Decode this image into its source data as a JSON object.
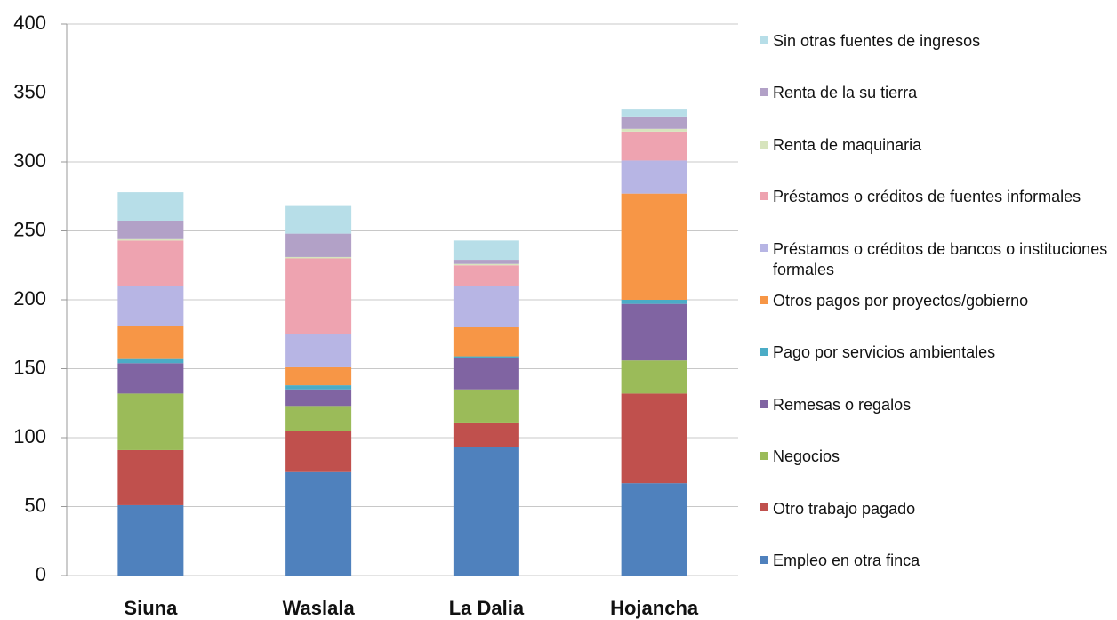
{
  "chart_data": {
    "type": "bar",
    "stacked": true,
    "categories": [
      "Siuna",
      "Waslala",
      "La Dalia",
      "Hojancha"
    ],
    "ylim": [
      0,
      400
    ],
    "yticks": [
      0,
      50,
      100,
      150,
      200,
      250,
      300,
      350,
      400
    ],
    "grid": true,
    "legend": "right",
    "series": [
      {
        "name": "Empleo en otra finca",
        "color": "#4f81bd",
        "values": [
          51,
          75,
          93,
          67
        ]
      },
      {
        "name": "Otro trabajo pagado",
        "color": "#c0504d",
        "values": [
          40,
          30,
          18,
          65
        ]
      },
      {
        "name": "Negocios",
        "color": "#9bbb59",
        "values": [
          41,
          18,
          24,
          24
        ]
      },
      {
        "name": "Remesas o regalos",
        "color": "#8064a2",
        "values": [
          22,
          12,
          23,
          41
        ]
      },
      {
        "name": "Pago por servicios ambientales",
        "color": "#4bacc6",
        "values": [
          3,
          3,
          1,
          3
        ]
      },
      {
        "name": "Otros pagos por proyectos/gobierno",
        "color": "#f79646",
        "values": [
          24,
          13,
          21,
          77
        ]
      },
      {
        "name": "Préstamos o créditos de bancos o instituciones formales",
        "color": "#b7b5e4",
        "values": [
          29,
          24,
          30,
          24
        ]
      },
      {
        "name": "Préstamos o créditos de fuentes informales",
        "color": "#eea3b0",
        "values": [
          33,
          55,
          15,
          21
        ]
      },
      {
        "name": "Renta de maquinaria",
        "color": "#d7e4bd",
        "values": [
          1,
          1,
          1,
          2
        ]
      },
      {
        "name": "Renta de la su tierra",
        "color": "#b2a1c7",
        "values": [
          13,
          17,
          3,
          9
        ]
      },
      {
        "name": "Sin otras fuentes de ingresos",
        "color": "#b7dee8",
        "values": [
          21,
          20,
          14,
          5
        ]
      }
    ]
  }
}
